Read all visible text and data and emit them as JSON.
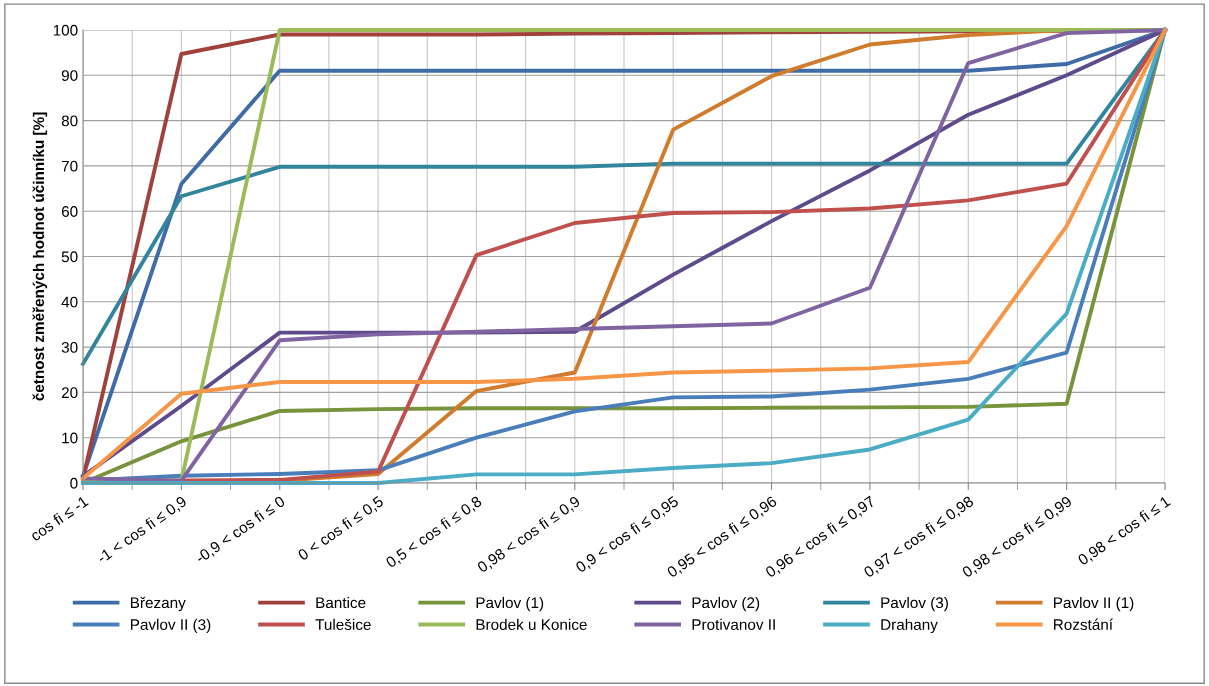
{
  "chart_data": {
    "type": "line",
    "ylabel": "četnost změřených hodnot účinníku [%]",
    "categories": [
      "cos fi ≤ -1",
      "-1 < cos fi ≤ 0,9",
      "-0,9 < cos fi ≤ 0",
      "0 < cos fi ≤ 0,5",
      "0,5 < cos fi ≤ 0,8",
      "0,98 < cos fi ≤ 0,9",
      "0,9 < cos fi ≤ 0,95",
      "0,95 < cos fi ≤ 0,96",
      "0,96 < cos fi ≤ 0,97",
      "0,97 < cos fi ≤ 0,98",
      "0,98 < cos fi ≤ 0,99",
      "0,98 < cos fi ≤ 1"
    ],
    "ylim": [
      0,
      100
    ],
    "yticks": [
      0,
      10,
      20,
      30,
      40,
      50,
      60,
      70,
      80,
      90,
      100
    ],
    "grid": true,
    "legend": "bottom",
    "marker": "none",
    "line_style": "solid",
    "series": [
      {
        "name": "Březany",
        "color": "#3f6ca6",
        "values": [
          1.5,
          66,
          91,
          91,
          91,
          91,
          91,
          91,
          91,
          91,
          92.5,
          100
        ]
      },
      {
        "name": "Bantice",
        "color": "#a0413c",
        "values": [
          1,
          94.7,
          99,
          99,
          99,
          99.2,
          99.3,
          99.5,
          99.6,
          99.7,
          99.8,
          100
        ]
      },
      {
        "name": "Pavlov (1)",
        "color": "#77933c",
        "values": [
          0,
          9.2,
          15.9,
          16.3,
          16.5,
          16.5,
          16.5,
          16.6,
          16.7,
          16.8,
          17.5,
          100
        ]
      },
      {
        "name": "Pavlov (2)",
        "color": "#5f4a8b",
        "values": [
          1.5,
          17,
          33.2,
          33.2,
          33.2,
          33.4,
          46,
          57.8,
          69,
          81.3,
          90,
          100
        ]
      },
      {
        "name": "Pavlov (3)",
        "color": "#31859c",
        "values": [
          26.3,
          63.3,
          69.8,
          69.8,
          69.8,
          69.8,
          70.5,
          70.5,
          70.5,
          70.5,
          70.5,
          100
        ]
      },
      {
        "name": "Pavlov II (1)",
        "color": "#d07c2c",
        "values": [
          0.5,
          0.5,
          0.5,
          2,
          20.3,
          24.4,
          78,
          89.8,
          96.8,
          98.9,
          100,
          100
        ]
      },
      {
        "name": "Pavlov II (3)",
        "color": "#4a7ebb",
        "values": [
          0.5,
          1.6,
          2,
          2.8,
          10,
          15.8,
          18.9,
          19.1,
          20.6,
          23,
          28.8,
          100
        ]
      },
      {
        "name": "Tulešice",
        "color": "#c0504d",
        "values": [
          0.5,
          0.5,
          0.7,
          2.5,
          50.3,
          57.4,
          59.6,
          59.8,
          60.6,
          62.4,
          66.1,
          100
        ]
      },
      {
        "name": "Brodek u Konice",
        "color": "#9bbb59",
        "values": [
          0.5,
          0.5,
          100,
          100,
          100,
          100,
          100,
          100,
          100,
          100,
          100,
          100
        ]
      },
      {
        "name": "Protivanov II",
        "color": "#8064a2",
        "values": [
          1,
          0.5,
          31.5,
          32.8,
          33.4,
          34,
          34.6,
          35.2,
          43.1,
          92.7,
          99.3,
          100
        ]
      },
      {
        "name": "Drahany",
        "color": "#4bacc6",
        "values": [
          0,
          0,
          0,
          0,
          1.9,
          1.9,
          3.3,
          4.4,
          7.4,
          14,
          37.4,
          100
        ]
      },
      {
        "name": "Rozstání",
        "color": "#f79646",
        "values": [
          1,
          19.7,
          22.3,
          22.3,
          22.3,
          23,
          24.4,
          24.8,
          25.3,
          26.7,
          56.7,
          100
        ]
      }
    ]
  }
}
